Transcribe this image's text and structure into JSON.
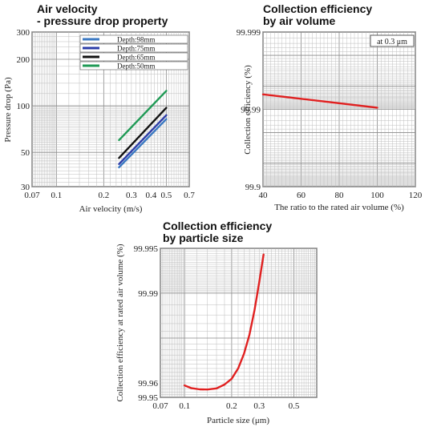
{
  "chart_data": [
    {
      "type": "line",
      "title": "Air velocity\n- pressure drop property",
      "xlabel": "Air velocity (m/s)",
      "ylabel": "Pressure drop (Pa)",
      "xscale": "log",
      "yscale": "log",
      "xlim": [
        0.07,
        0.7
      ],
      "ylim": [
        30,
        300
      ],
      "xticks": [
        "0.07",
        "0.1",
        "0.2",
        "0.3",
        "0.4",
        "0.5",
        "0.7"
      ],
      "yticks": [
        "30",
        "50",
        "100",
        "200",
        "300"
      ],
      "grid": true,
      "legend_position": "top-right",
      "series": [
        {
          "name": "Depth:98mm",
          "color": "#3a78c2",
          "x": [
            0.25,
            0.5
          ],
          "y": [
            40,
            82
          ]
        },
        {
          "name": "Depth:75mm",
          "color": "#2b3ca8",
          "x": [
            0.25,
            0.5
          ],
          "y": [
            42,
            87
          ]
        },
        {
          "name": "Depth:65mm",
          "color": "#111111",
          "x": [
            0.25,
            0.5
          ],
          "y": [
            46,
            97
          ]
        },
        {
          "name": "Depth:50mm",
          "color": "#1f9a55",
          "x": [
            0.25,
            0.5
          ],
          "y": [
            60,
            125
          ]
        }
      ]
    },
    {
      "type": "line",
      "title": "Collection efficiency\nby air volume",
      "xlabel": "The ratio to the rated air volume (%)",
      "ylabel": "Collection efficiency (%)",
      "yscale": "log-penetration",
      "xlim": [
        40,
        120
      ],
      "ylim": [
        99.9,
        99.999
      ],
      "xticks": [
        "40",
        "60",
        "80",
        "100",
        "120"
      ],
      "yticks": [
        "99.9",
        "99.99",
        "99.999"
      ],
      "grid": true,
      "annotation": "at 0.3 μm",
      "series": [
        {
          "color": "#e02020",
          "x": [
            40,
            100
          ],
          "y": [
            99.9936,
            99.9905
          ]
        }
      ]
    },
    {
      "type": "line",
      "title": "Collection efficiency\nby particle size",
      "xlabel": "Particle size (μm)",
      "ylabel": "Collection efficiency at rated air volume (%)",
      "xscale": "log",
      "yscale": "log-penetration",
      "xlim": [
        0.07,
        0.7
      ],
      "ylim": [
        99.95,
        99.995
      ],
      "xticks": [
        "0.07",
        "0.1",
        "0.2",
        "0.3",
        "0.5"
      ],
      "yticks": [
        "99.95",
        "99.96",
        "99.99",
        "99.995"
      ],
      "grid": true,
      "series": [
        {
          "color": "#e02020",
          "x": [
            0.1,
            0.11,
            0.125,
            0.14,
            0.16,
            0.18,
            0.2,
            0.22,
            0.24,
            0.26,
            0.28,
            0.3,
            0.32
          ],
          "y": [
            99.9584,
            99.9567,
            99.9558,
            99.9557,
            99.9565,
            99.959,
            99.9625,
            99.968,
            99.9745,
            99.981,
            99.987,
            99.9915,
            99.9945
          ]
        }
      ]
    }
  ]
}
